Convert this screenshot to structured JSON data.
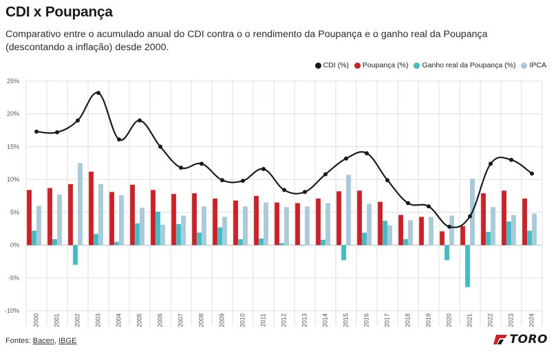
{
  "header": {
    "title": "CDI x Poupança",
    "subtitle": "Comparativo entre o acumulado anual do CDI contra o o rendimento da Poupança e o ganho real da Poupança (descontando a inflação) desde 2000."
  },
  "footer": {
    "prefix": "Fontes: ",
    "source_1": "Bacen",
    "separator": ", ",
    "source_2": "IBGE",
    "brand": "TORO"
  },
  "colors": {
    "cdi": "#1a1a1a",
    "poupanca": "#d21f26",
    "ganho_real": "#3fbcc4",
    "ipca": "#a8cbdc",
    "grid": "#dddddd",
    "zero_line": "#bbbbbb"
  },
  "chart_data": {
    "type": "bar",
    "title": "CDI x Poupança",
    "xlabel": "",
    "ylabel": "",
    "ylim": [
      -10,
      25
    ],
    "yticks": [
      -10,
      -5,
      0,
      5,
      10,
      15,
      20,
      25
    ],
    "ytick_labels": [
      "-10%",
      "-5%",
      "0%",
      "5%",
      "10%",
      "15%",
      "20%",
      "25%"
    ],
    "grid": true,
    "legend_position": "top-right",
    "categories": [
      "2000",
      "2001",
      "2002",
      "2003",
      "2004",
      "2005",
      "2006",
      "2007",
      "2008",
      "2009",
      "2010",
      "2011",
      "2012",
      "2013",
      "2014",
      "2015",
      "2016",
      "2017",
      "2018",
      "2019",
      "2020",
      "2021",
      "2022",
      "2023",
      "2024"
    ],
    "series": [
      {
        "name": "CDI (%)",
        "type": "line",
        "values": [
          17.3,
          17.2,
          19.0,
          23.2,
          16.1,
          19.0,
          15.0,
          11.8,
          12.4,
          9.9,
          9.8,
          11.6,
          8.4,
          8.1,
          10.8,
          13.2,
          14.0,
          9.9,
          6.4,
          5.9,
          2.8,
          4.4,
          12.4,
          13.0,
          10.9
        ]
      },
      {
        "name": "Poupança (%)",
        "type": "bar",
        "values": [
          8.4,
          8.7,
          9.3,
          11.2,
          8.1,
          9.2,
          8.4,
          7.8,
          7.9,
          7.1,
          6.8,
          7.5,
          6.5,
          6.4,
          7.1,
          8.2,
          8.3,
          6.6,
          4.6,
          4.3,
          2.1,
          2.9,
          7.9,
          8.3,
          7.1
        ]
      },
      {
        "name": "Ganho real da Poupança (%)",
        "type": "bar",
        "values": [
          2.2,
          0.9,
          -3.0,
          1.7,
          0.5,
          3.3,
          5.1,
          3.2,
          1.9,
          2.7,
          0.9,
          1.0,
          0.3,
          -0.1,
          0.8,
          -2.3,
          1.9,
          3.7,
          0.9,
          0.0,
          -2.3,
          -6.4,
          2.0,
          3.6,
          2.2
        ]
      },
      {
        "name": "IPCA",
        "type": "bar",
        "values": [
          6.0,
          7.7,
          12.5,
          9.3,
          7.6,
          5.7,
          3.1,
          4.5,
          5.9,
          4.3,
          5.9,
          6.5,
          5.8,
          5.9,
          6.4,
          10.7,
          6.3,
          3.0,
          3.8,
          4.3,
          4.5,
          10.1,
          5.8,
          4.6,
          4.8
        ]
      }
    ]
  }
}
